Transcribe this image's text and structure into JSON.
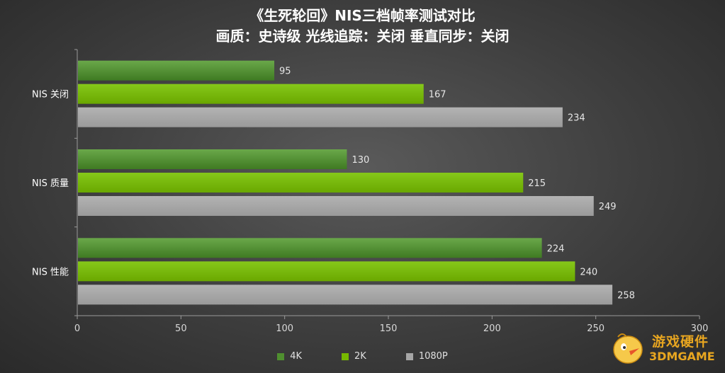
{
  "title": {
    "line1": "《生死轮回》NIS三档帧率测试对比",
    "line2": "画质：史诗级 光线追踪：关闭  垂直同步：关闭"
  },
  "chart_data": {
    "type": "bar",
    "orientation": "horizontal",
    "categories": [
      "NIS 关闭",
      "NIS 质量",
      "NIS 性能"
    ],
    "series": [
      {
        "name": "4K",
        "values": [
          95,
          130,
          224
        ],
        "color": "#4f8f2f"
      },
      {
        "name": "2K",
        "values": [
          167,
          215,
          240
        ],
        "color": "#76b900"
      },
      {
        "name": "1080P",
        "values": [
          234,
          249,
          258
        ],
        "color": "#a6a6a6"
      }
    ],
    "xlim": [
      0,
      300
    ],
    "xticks": [
      0,
      50,
      100,
      150,
      200,
      250,
      300
    ],
    "grid": false,
    "legend_position": "bottom"
  },
  "watermark": {
    "line1": "游戏硬件",
    "line2": "3DMGAME"
  }
}
